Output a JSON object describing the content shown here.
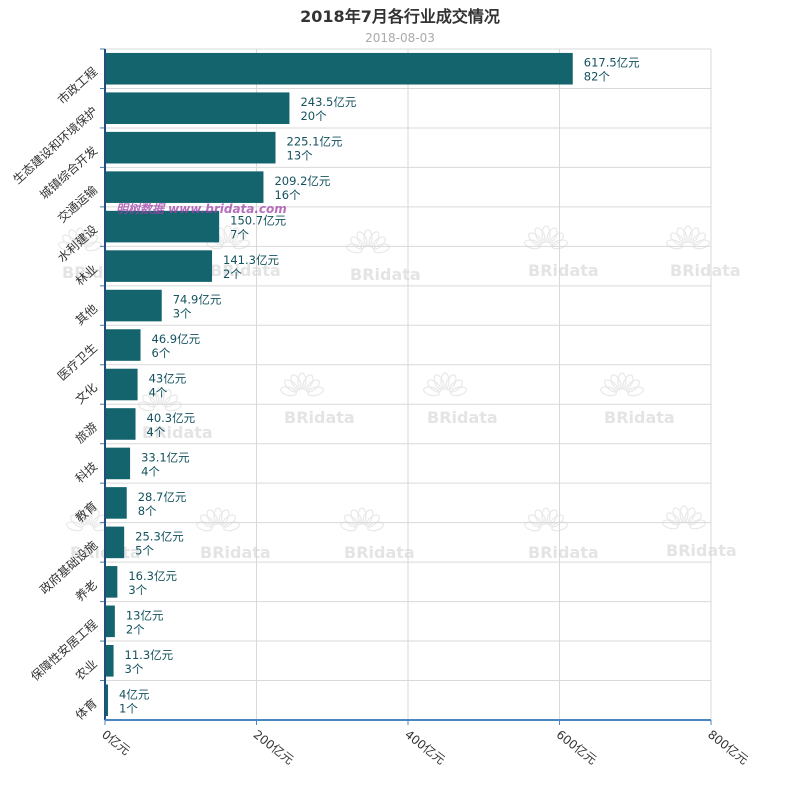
{
  "chart_data": {
    "type": "bar",
    "orientation": "horizontal",
    "title": "2018年7月各行业成交情况",
    "subtitle": "2018-08-03",
    "categories": [
      "市政工程",
      "生态建设和环境保护",
      "城镇综合开发",
      "交通运输",
      "水利建设",
      "林业",
      "其他",
      "医疗卫生",
      "文化",
      "旅游",
      "科技",
      "教育",
      "政府基础设施",
      "养老",
      "保障性安居工程",
      "农业",
      "体育"
    ],
    "series": [
      {
        "values": [
          617.5,
          243.5,
          225.1,
          209.2,
          150.7,
          141.3,
          74.9,
          46.9,
          43,
          40.3,
          33.1,
          28.7,
          25.3,
          16.3,
          13,
          11.3,
          4
        ],
        "counts": [
          82,
          20,
          13,
          16,
          7,
          2,
          3,
          6,
          4,
          4,
          4,
          8,
          5,
          3,
          2,
          3,
          1
        ]
      }
    ],
    "value_unit": "亿元",
    "count_unit": "个",
    "xlim": [
      0,
      800
    ],
    "x_ticks": [
      0,
      200,
      400,
      600,
      800
    ],
    "x_tick_labels": [
      "0亿元",
      "200亿元",
      "400亿元",
      "600亿元",
      "800亿元"
    ],
    "grid": true,
    "bar_color": "#14646e"
  },
  "watermark": {
    "text": "明树数据 www.bridata.com",
    "logo": "BRidata"
  }
}
